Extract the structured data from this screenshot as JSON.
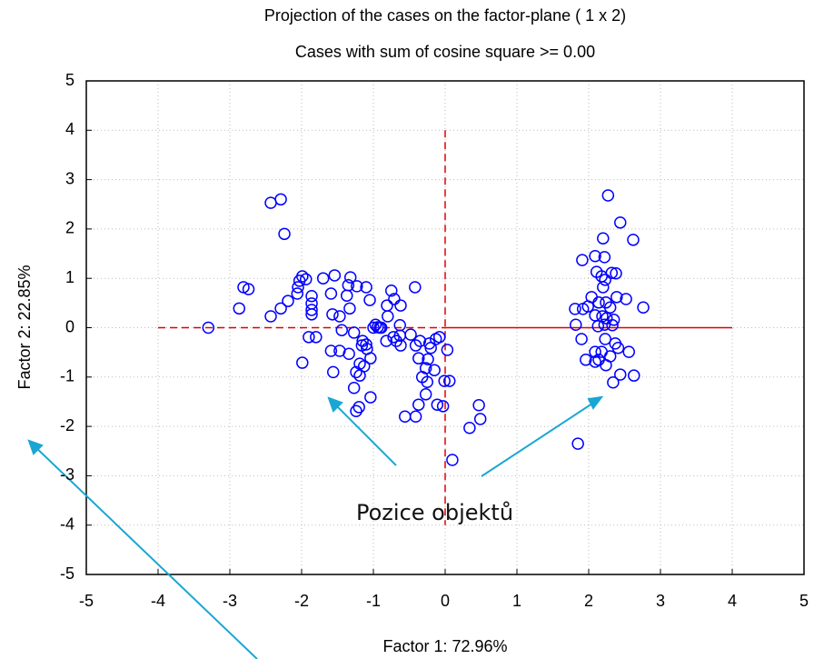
{
  "chart_data": {
    "type": "scatter",
    "title": "Projection of the cases on the factor-plane (  1 x   2)",
    "subtitle": "Cases with sum of cosine square >=  0.00",
    "x_label": "Factor 1: 72.96%",
    "y_label": "Factor 2: 22.85%",
    "annotation": "Pozice objektů",
    "xlim": [
      -5,
      5
    ],
    "ylim": [
      -5,
      5
    ],
    "xticks": [
      -5,
      -4,
      -3,
      -2,
      -1,
      0,
      1,
      2,
      3,
      4,
      5
    ],
    "yticks": [
      -5,
      -4,
      -3,
      -2,
      -1,
      0,
      1,
      2,
      3,
      4,
      5
    ],
    "grid": true,
    "reference_lines": {
      "x": 0,
      "y": 0,
      "extent": [
        -4,
        4
      ],
      "color": "#e00000"
    },
    "series": [
      {
        "color": "#0000ff",
        "x": [
          -3.3,
          -2.43,
          -2.29,
          -2.24,
          -2.87,
          -2.81,
          -2.74,
          -2.43,
          -2.29,
          -2.19,
          -2.06,
          -2.03,
          -1.99,
          -1.94,
          -2.05,
          -1.86,
          -1.86,
          -1.86,
          -1.86,
          -1.9,
          -1.8,
          -1.99,
          -1.7,
          -1.54,
          -1.57,
          -1.47,
          -1.59,
          -1.37,
          -1.32,
          -1.23,
          -1.35,
          -1.1,
          -1.33,
          -1.05,
          -0.81,
          -0.62,
          -0.75,
          -0.42,
          -0.71,
          -0.8,
          -0.89,
          -1.44,
          -1.59,
          -1.47,
          -1.34,
          -1.56,
          -1.27,
          -1.15,
          -1.1,
          -1.16,
          -1.09,
          -1.19,
          -1.24,
          -1.19,
          -1.13,
          -1.04,
          -0.97,
          -0.94,
          -1.0,
          -0.91,
          -1.27,
          -1.2,
          -1.24,
          -1.04,
          -0.72,
          -0.68,
          -0.62,
          -0.63,
          -0.48,
          -0.35,
          -0.41,
          -0.22,
          -0.2,
          -0.24,
          -0.37,
          -0.08,
          -0.13,
          0.03,
          -0.27,
          -0.32,
          -0.25,
          -0.27,
          -0.15,
          -0.01,
          0.06,
          -0.11,
          -0.03,
          -0.37,
          -0.41,
          -0.56,
          0.47,
          0.49,
          0.34,
          0.1,
          -0.82,
          -0.63,
          2.27,
          2.44,
          2.62,
          2.2,
          1.91,
          2.09,
          2.22,
          2.11,
          2.18,
          2.23,
          2.32,
          2.38,
          2.2,
          2.04,
          2.39,
          2.52,
          2.76,
          1.81,
          1.92,
          1.99,
          2.14,
          2.24,
          2.3,
          2.09,
          2.19,
          2.25,
          2.35,
          2.22,
          1.82,
          1.9,
          2.23,
          2.37,
          2.41,
          2.18,
          2.09,
          2.56,
          2.3,
          2.09,
          2.14,
          1.96,
          2.24,
          2.44,
          2.63,
          2.34,
          1.85,
          2.13,
          2.33
        ],
        "values": [
          0.0,
          2.53,
          2.6,
          1.9,
          0.39,
          0.82,
          0.78,
          0.23,
          0.39,
          0.54,
          0.69,
          0.95,
          1.04,
          0.98,
          0.82,
          0.64,
          0.49,
          0.36,
          0.27,
          -0.19,
          -0.19,
          -0.71,
          1.0,
          1.06,
          0.27,
          0.23,
          0.69,
          0.65,
          1.02,
          0.84,
          0.86,
          0.82,
          0.39,
          0.56,
          0.45,
          0.45,
          0.75,
          0.82,
          0.58,
          0.23,
          0.0,
          -0.05,
          -0.47,
          -0.47,
          -0.53,
          -0.9,
          -0.1,
          -0.27,
          -0.34,
          -0.36,
          -0.43,
          -0.73,
          -0.9,
          -0.97,
          -0.78,
          -0.62,
          0.06,
          0.01,
          0.0,
          0.0,
          -1.22,
          -1.61,
          -1.69,
          -1.41,
          -0.19,
          -0.27,
          -0.36,
          0.05,
          -0.14,
          -0.27,
          -0.36,
          -0.32,
          -0.41,
          -0.64,
          -0.62,
          -0.19,
          -0.23,
          -0.45,
          -0.82,
          -1.0,
          -1.1,
          -1.35,
          -0.86,
          -1.08,
          -1.08,
          -1.56,
          -1.59,
          -1.56,
          -1.8,
          -1.8,
          -1.57,
          -1.85,
          -2.03,
          -2.68,
          -0.27,
          -0.16,
          2.68,
          2.13,
          1.78,
          1.81,
          1.37,
          1.45,
          1.43,
          1.13,
          1.04,
          0.97,
          1.11,
          1.1,
          0.82,
          0.62,
          0.62,
          0.58,
          0.41,
          0.38,
          0.38,
          0.43,
          0.51,
          0.51,
          0.41,
          0.25,
          0.23,
          0.19,
          0.16,
          0.06,
          0.06,
          -0.23,
          -0.23,
          -0.32,
          -0.41,
          -0.49,
          -0.49,
          -0.49,
          -0.58,
          -0.69,
          -0.65,
          -0.65,
          -0.76,
          -0.95,
          -0.97,
          -1.11,
          -2.35,
          0.03,
          0.05
        ]
      }
    ]
  }
}
